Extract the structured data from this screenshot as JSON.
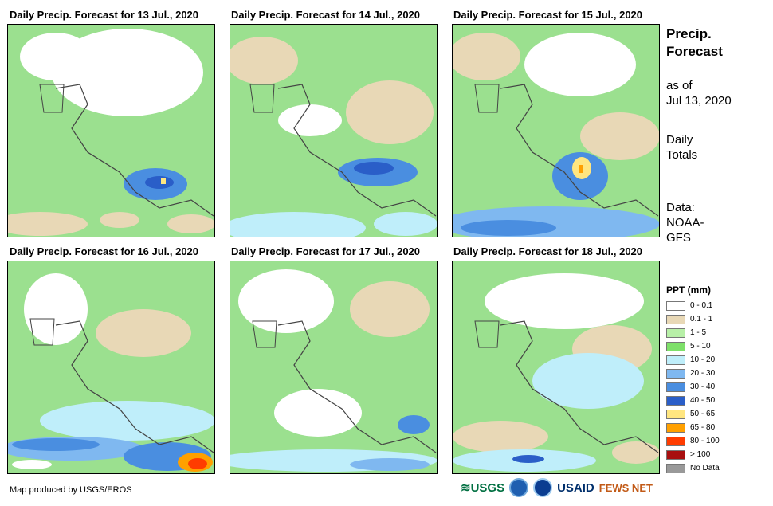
{
  "panels": [
    {
      "title": "Daily Precip. Forecast for 13 Jul., 2020"
    },
    {
      "title": "Daily Precip. Forecast for 14 Jul., 2020"
    },
    {
      "title": "Daily Precip. Forecast for 15 Jul., 2020"
    },
    {
      "title": "Daily Precip. Forecast for 16 Jul., 2020"
    },
    {
      "title": "Daily Precip. Forecast for 17 Jul., 2020"
    },
    {
      "title": "Daily Precip. Forecast for 18 Jul., 2020"
    }
  ],
  "sidebar": {
    "title_line1": "Precip.",
    "title_line2": "Forecast",
    "asof_line1": "as of",
    "asof_line2": "Jul 13, 2020",
    "daily_line1": "Daily",
    "daily_line2": "Totals",
    "data_line1": "Data:",
    "data_line2": "NOAA-",
    "data_line3": "GFS"
  },
  "legend": {
    "title": "PPT (mm)",
    "items": [
      {
        "label": "0 - 0.1",
        "color": "#ffffff"
      },
      {
        "label": "0.1 - 1",
        "color": "#e8d8b6"
      },
      {
        "label": "1 - 5",
        "color": "#b8f0a8"
      },
      {
        "label": "5 - 10",
        "color": "#7ee06a"
      },
      {
        "label": "10 - 20",
        "color": "#bfeefa"
      },
      {
        "label": "20 - 30",
        "color": "#7fb8f0"
      },
      {
        "label": "30 - 40",
        "color": "#4a8ee0"
      },
      {
        "label": "40 - 50",
        "color": "#2a5ec8"
      },
      {
        "label": "50 - 65",
        "color": "#ffe680"
      },
      {
        "label": "65 - 80",
        "color": "#ffa000"
      },
      {
        "label": "80 - 100",
        "color": "#ff3c00"
      },
      {
        "label": "> 100",
        "color": "#a81010"
      },
      {
        "label": "No Data",
        "color": "#999999"
      }
    ]
  },
  "footer": {
    "credit": "Map produced by USGS/EROS",
    "logo_usgs": "USGS",
    "logo_usaid": "USAID",
    "logo_fewsnet": "FEWS NET"
  }
}
